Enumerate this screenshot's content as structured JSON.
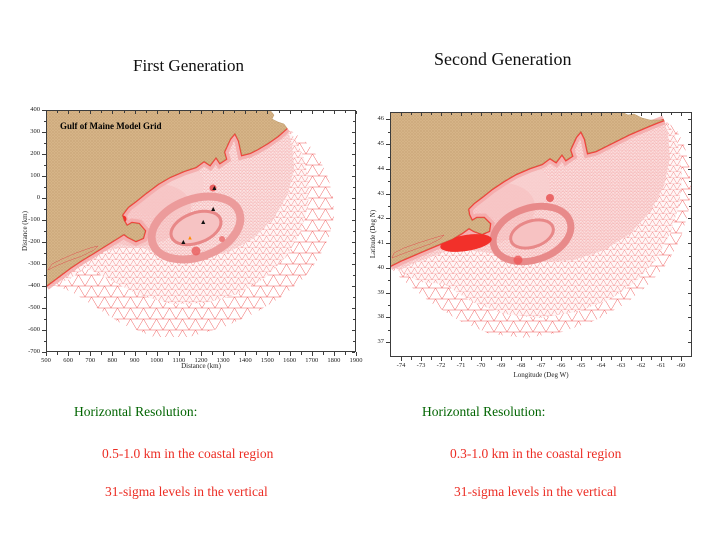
{
  "slide": {
    "titles": {
      "left": "First Generation",
      "right": "Second Generation"
    },
    "captions": {
      "left": {
        "heading": "Horizontal Resolution:",
        "line1": "0.5-1.0 km in the coastal region",
        "line2": "31-sigma levels in the vertical"
      },
      "right": {
        "heading": "Horizontal Resolution:",
        "line1": "0.3-1.0 km in the coastal region",
        "line2": "31-sigma levels in the vertical"
      }
    },
    "colors": {
      "heading_green": "#006400",
      "body_red": "#EC2D24",
      "map_label_red": "#E63030",
      "land_tan": "#D6B488",
      "mesh_red": "#EF5A5A"
    }
  },
  "chart_data": [
    {
      "type": "mesh-grid-map",
      "panel": "first_generation",
      "title": "First Generation",
      "inner_label": "Gulf of Maine Model Grid",
      "xlabel": "Distance (km)",
      "ylabel": "Distance (km)",
      "xticks": [
        500,
        600,
        700,
        800,
        900,
        1000,
        1100,
        1200,
        1300,
        1400,
        1500,
        1600,
        1700,
        1800,
        1900
      ],
      "yticks": [
        400,
        300,
        200,
        100,
        0,
        -100,
        -200,
        -300,
        -400,
        -500,
        -600,
        -700
      ],
      "xlim": [
        500,
        1900
      ],
      "ylim": [
        -700,
        400
      ],
      "grid": "unstructured triangular mesh, red on white; land tan stipple",
      "markers": {
        "black_triangles": [
          [
            1260,
            40
          ],
          [
            1255,
            -55
          ],
          [
            1210,
            -115
          ],
          [
            1120,
            -205
          ]
        ],
        "orange_triangle": [
          [
            1150,
            -185
          ]
        ]
      }
    },
    {
      "type": "mesh-grid-map",
      "panel": "second_generation",
      "title": "Second Generation",
      "inner_label": "",
      "xlabel": "Longitude (Deg W)",
      "ylabel": "Latitude (Deg N)",
      "xticks": [
        -74,
        -73,
        -72,
        -71,
        -70,
        -69,
        -68,
        -67,
        -66,
        -65,
        -64,
        -63,
        -62,
        -61,
        -60
      ],
      "yticks": [
        46,
        45,
        44,
        43,
        42,
        41,
        40,
        39,
        38,
        37
      ],
      "xlim": [
        -74.55,
        -59.45
      ],
      "ylim": [
        36.4,
        46.3
      ],
      "grid": "unstructured triangular mesh, red on white; land tan stipple",
      "markers": {
        "black_triangles": [],
        "orange_triangle": []
      }
    }
  ]
}
